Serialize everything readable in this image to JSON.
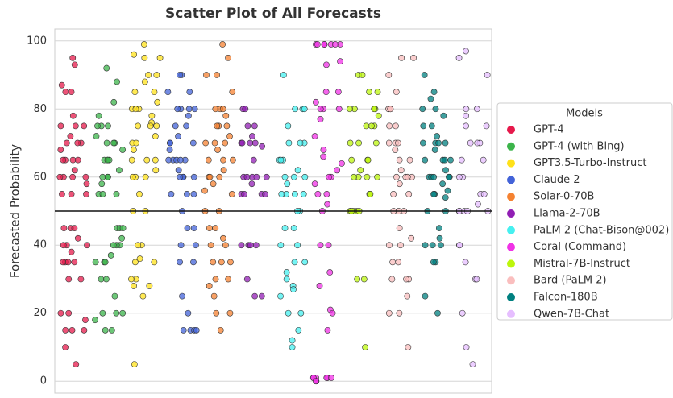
{
  "chart_data": {
    "type": "scatter",
    "title": "Scatter Plot of All Forecasts",
    "y_label": "Forecasted Probability",
    "legend_title": "Models",
    "legend_position": "right",
    "grid": true,
    "hline": 50,
    "ylim": [
      -3.5,
      103.5
    ],
    "yticks": [
      0,
      20,
      40,
      60,
      80,
      100
    ],
    "series": [
      {
        "name": "GPT-4",
        "color": "#e6194b",
        "values": [
          95,
          93,
          87,
          85,
          85,
          78,
          75,
          75,
          75,
          72,
          70,
          70,
          70,
          68,
          65,
          65,
          65,
          65,
          62,
          60,
          60,
          60,
          60,
          58,
          55,
          55,
          55,
          45,
          45,
          45,
          42,
          40,
          40,
          40,
          38,
          35,
          35,
          35,
          35,
          30,
          30,
          20,
          20,
          18,
          15,
          15,
          15,
          10,
          5
        ]
      },
      {
        "name": "GPT-4 (with Bing)",
        "color": "#3cb44b",
        "values": [
          92,
          88,
          82,
          78,
          75,
          75,
          75,
          72,
          70,
          70,
          70,
          68,
          65,
          65,
          65,
          65,
          62,
          60,
          60,
          60,
          58,
          55,
          55,
          55,
          45,
          45,
          45,
          42,
          40,
          40,
          40,
          37,
          35,
          35,
          35,
          30,
          30,
          25,
          20,
          20,
          20,
          18,
          15,
          15
        ]
      },
      {
        "name": "GPT3.5-Turbo-Instruct",
        "color": "#ffe119",
        "values": [
          99,
          96,
          95,
          95,
          90,
          90,
          88,
          85,
          85,
          82,
          80,
          80,
          80,
          78,
          76,
          75,
          75,
          75,
          72,
          70,
          70,
          68,
          65,
          65,
          65,
          62,
          60,
          60,
          60,
          55,
          50,
          50,
          40,
          40,
          36,
          35,
          35,
          30,
          30,
          28,
          28,
          25,
          5
        ]
      },
      {
        "name": "Claude 2",
        "color": "#4363d8",
        "values": [
          90,
          90,
          85,
          85,
          80,
          80,
          80,
          80,
          78,
          75,
          75,
          72,
          70,
          70,
          70,
          68,
          65,
          65,
          65,
          65,
          65,
          62,
          60,
          60,
          60,
          60,
          55,
          55,
          55,
          50,
          45,
          45,
          40,
          40,
          35,
          35,
          25,
          20,
          15,
          15,
          15,
          15
        ]
      },
      {
        "name": "Solar-0-70B",
        "color": "#f58231",
        "values": [
          99,
          95,
          90,
          90,
          85,
          80,
          80,
          80,
          78,
          75,
          75,
          75,
          72,
          70,
          70,
          70,
          68,
          65,
          65,
          65,
          62,
          60,
          60,
          60,
          58,
          56,
          55,
          50,
          50,
          45,
          45,
          42,
          40,
          40,
          35,
          35,
          35,
          30,
          30,
          28,
          25,
          20,
          20,
          15
        ]
      },
      {
        "name": "Llama-2-70B",
        "color": "#911eb4",
        "values": [
          80,
          80,
          75,
          75,
          72,
          70,
          70,
          70,
          70,
          69,
          65,
          60,
          60,
          60,
          60,
          60,
          58,
          55,
          55,
          55,
          55,
          40,
          40,
          40,
          40,
          30,
          25,
          25
        ]
      },
      {
        "name": "PaLM 2 (Chat-Bison@002)",
        "color": "#46f0f0",
        "values": [
          90,
          80,
          80,
          80,
          75,
          70,
          70,
          70,
          65,
          65,
          65,
          62,
          60,
          60,
          60,
          58,
          55,
          55,
          55,
          55,
          50,
          50,
          45,
          45,
          40,
          40,
          35,
          35,
          32,
          30,
          28,
          27,
          25,
          20,
          20,
          15,
          12,
          10
        ]
      },
      {
        "name": "Coral (Command)",
        "color": "#f032e6",
        "values": [
          99,
          99,
          99,
          99,
          99,
          99,
          99,
          94,
          93,
          85,
          85,
          82,
          80,
          80,
          80,
          77,
          72,
          68,
          66,
          64,
          62,
          60,
          60,
          58,
          55,
          55,
          52,
          50,
          40,
          40,
          32,
          28,
          21,
          20,
          15,
          1,
          1,
          1,
          1,
          1,
          1,
          0,
          0
        ]
      },
      {
        "name": "Mistral-7B-Instruct",
        "color": "#bcf60c",
        "values": [
          90,
          90,
          85,
          85,
          80,
          80,
          80,
          80,
          78,
          75,
          75,
          75,
          70,
          70,
          70,
          65,
          65,
          65,
          62,
          60,
          60,
          60,
          60,
          55,
          55,
          50,
          50,
          50,
          50,
          50,
          30,
          30,
          10
        ]
      },
      {
        "name": "Bard (PaLM 2)",
        "color": "#fabebe",
        "values": [
          95,
          95,
          90,
          85,
          80,
          80,
          80,
          75,
          75,
          70,
          70,
          70,
          68,
          65,
          65,
          62,
          60,
          60,
          60,
          60,
          58,
          55,
          55,
          50,
          50,
          50,
          45,
          42,
          40,
          40,
          35,
          35,
          30,
          30,
          30,
          25,
          20,
          20,
          10
        ]
      },
      {
        "name": "Falcon-180B",
        "color": "#008080",
        "values": [
          90,
          85,
          83,
          80,
          80,
          78,
          75,
          75,
          72,
          70,
          70,
          70,
          70,
          68,
          65,
          65,
          65,
          65,
          62,
          60,
          60,
          60,
          60,
          60,
          58,
          56,
          55,
          55,
          54,
          50,
          50,
          45,
          42,
          40,
          40,
          40,
          35,
          35,
          25,
          20
        ]
      },
      {
        "name": "Qwen-7B-Chat",
        "color": "#e6beff",
        "values": [
          97,
          95,
          90,
          80,
          80,
          78,
          75,
          75,
          70,
          70,
          70,
          65,
          65,
          60,
          60,
          55,
          55,
          52,
          50,
          50,
          50,
          50,
          50,
          40,
          40,
          35,
          30,
          30,
          20,
          10,
          5
        ]
      }
    ]
  }
}
